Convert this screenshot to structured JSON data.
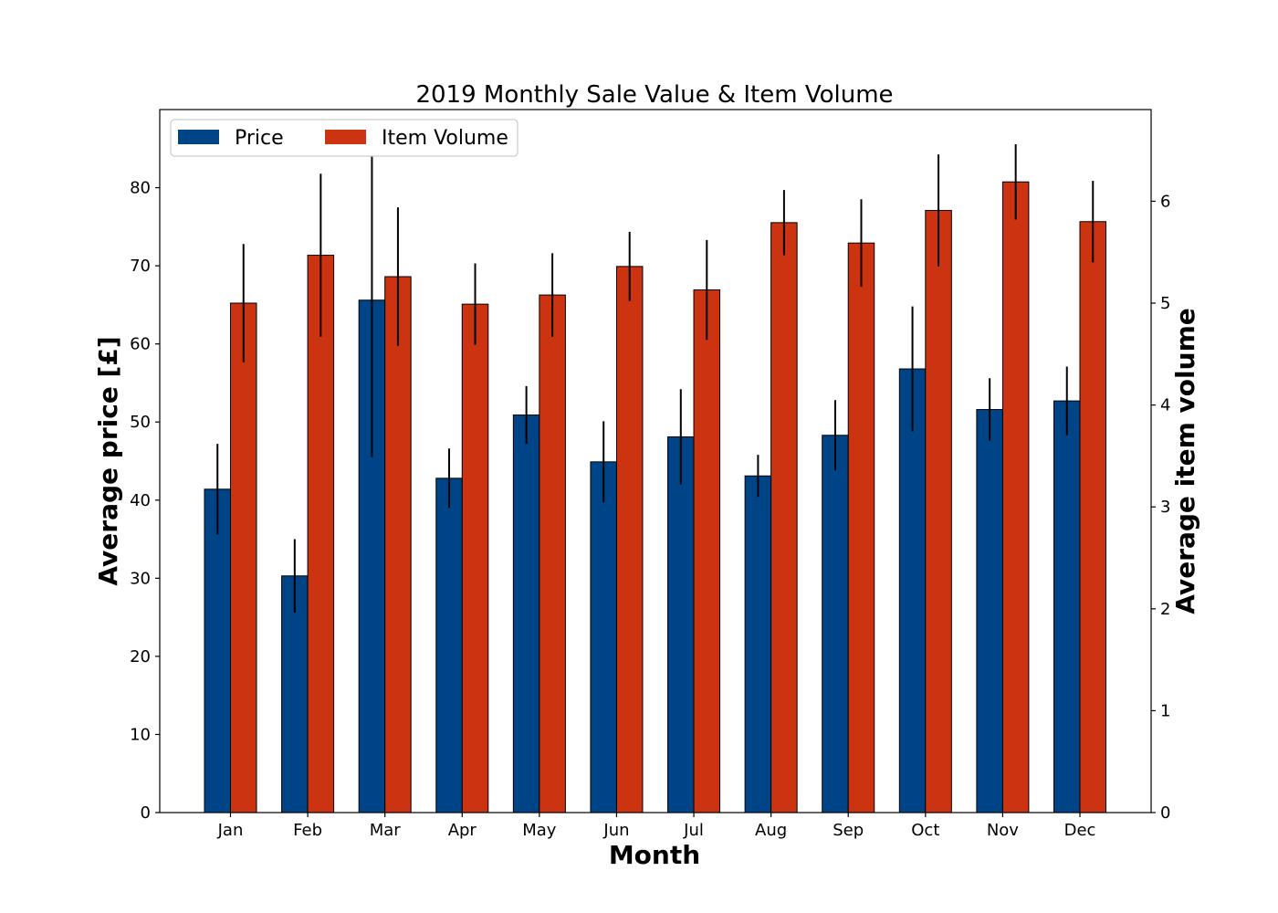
{
  "chart_data": {
    "type": "bar",
    "title": "2019 Monthly Sale Value & Item Volume",
    "xlabel": "Month",
    "ylabel_left": "Average price [£]",
    "ylabel_right": "Average item volume",
    "categories": [
      "Jan",
      "Feb",
      "Mar",
      "Apr",
      "May",
      "Jun",
      "Jul",
      "Aug",
      "Sep",
      "Oct",
      "Nov",
      "Dec"
    ],
    "ylim_left": [
      0,
      90
    ],
    "ylim_right": [
      0,
      6.9
    ],
    "yticks_left": [
      0,
      10,
      20,
      30,
      40,
      50,
      60,
      70,
      80
    ],
    "yticks_right": [
      0,
      1,
      2,
      3,
      4,
      5,
      6
    ],
    "legend_position": "top-left",
    "series": [
      {
        "name": "Price",
        "axis": "left",
        "color": "#004488",
        "values": [
          41.4,
          30.3,
          65.6,
          42.8,
          50.9,
          44.9,
          48.1,
          43.1,
          48.3,
          56.8,
          51.6,
          52.7
        ],
        "errors": [
          5.8,
          4.7,
          20.1,
          3.8,
          3.7,
          5.2,
          6.1,
          2.7,
          4.5,
          8.0,
          4.0,
          4.4
        ]
      },
      {
        "name": "Item Volume",
        "axis": "right",
        "color": "#cc3311",
        "values": [
          5.0,
          5.47,
          5.26,
          4.99,
          5.08,
          5.36,
          5.13,
          5.79,
          5.59,
          5.91,
          6.19,
          5.8
        ],
        "errors": [
          0.58,
          0.8,
          0.68,
          0.4,
          0.41,
          0.34,
          0.49,
          0.32,
          0.43,
          0.55,
          0.37,
          0.4
        ]
      }
    ]
  }
}
